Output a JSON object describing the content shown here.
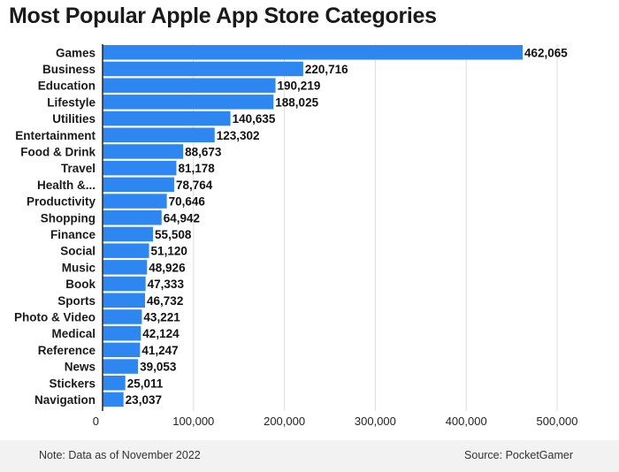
{
  "chart_data": {
    "type": "bar",
    "orientation": "horizontal",
    "title": "Most Popular Apple App Store Categories",
    "categories": [
      "Games",
      "Business",
      "Education",
      "Lifestyle",
      "Utilities",
      "Entertainment",
      "Food & Drink",
      "Travel",
      "Health &...",
      "Productivity",
      "Shopping",
      "Finance",
      "Social",
      "Music",
      "Book",
      "Sports",
      "Photo & Video",
      "Medical",
      "Reference",
      "News",
      "Stickers",
      "Navigation"
    ],
    "values": [
      462065,
      220716,
      190219,
      188025,
      140635,
      123302,
      88673,
      81178,
      78764,
      70646,
      64942,
      55508,
      51120,
      48926,
      47333,
      46732,
      43221,
      42124,
      41247,
      39053,
      25011,
      23037
    ],
    "value_labels": [
      "462,065",
      "220,716",
      "190,219",
      "188,025",
      "140,635",
      "123,302",
      "88,673",
      "81,178",
      "78,764",
      "70,646",
      "64,942",
      "55,508",
      "51,120",
      "48,926",
      "47,333",
      "46,732",
      "43,221",
      "42,124",
      "41,247",
      "39,053",
      "25,011",
      "23,037"
    ],
    "xticks": [
      0,
      100000,
      200000,
      300000,
      400000,
      500000
    ],
    "xtick_labels": [
      "0",
      "100,000",
      "200,000",
      "300,000",
      "400,000",
      "500,000"
    ],
    "xlim": [
      0,
      500000
    ],
    "bar_color": "#2e86f0",
    "grid": "vertical",
    "xlabel": "",
    "ylabel": ""
  },
  "footer": {
    "note": "Note: Data as of November 2022",
    "source": "Source: PocketGamer"
  }
}
